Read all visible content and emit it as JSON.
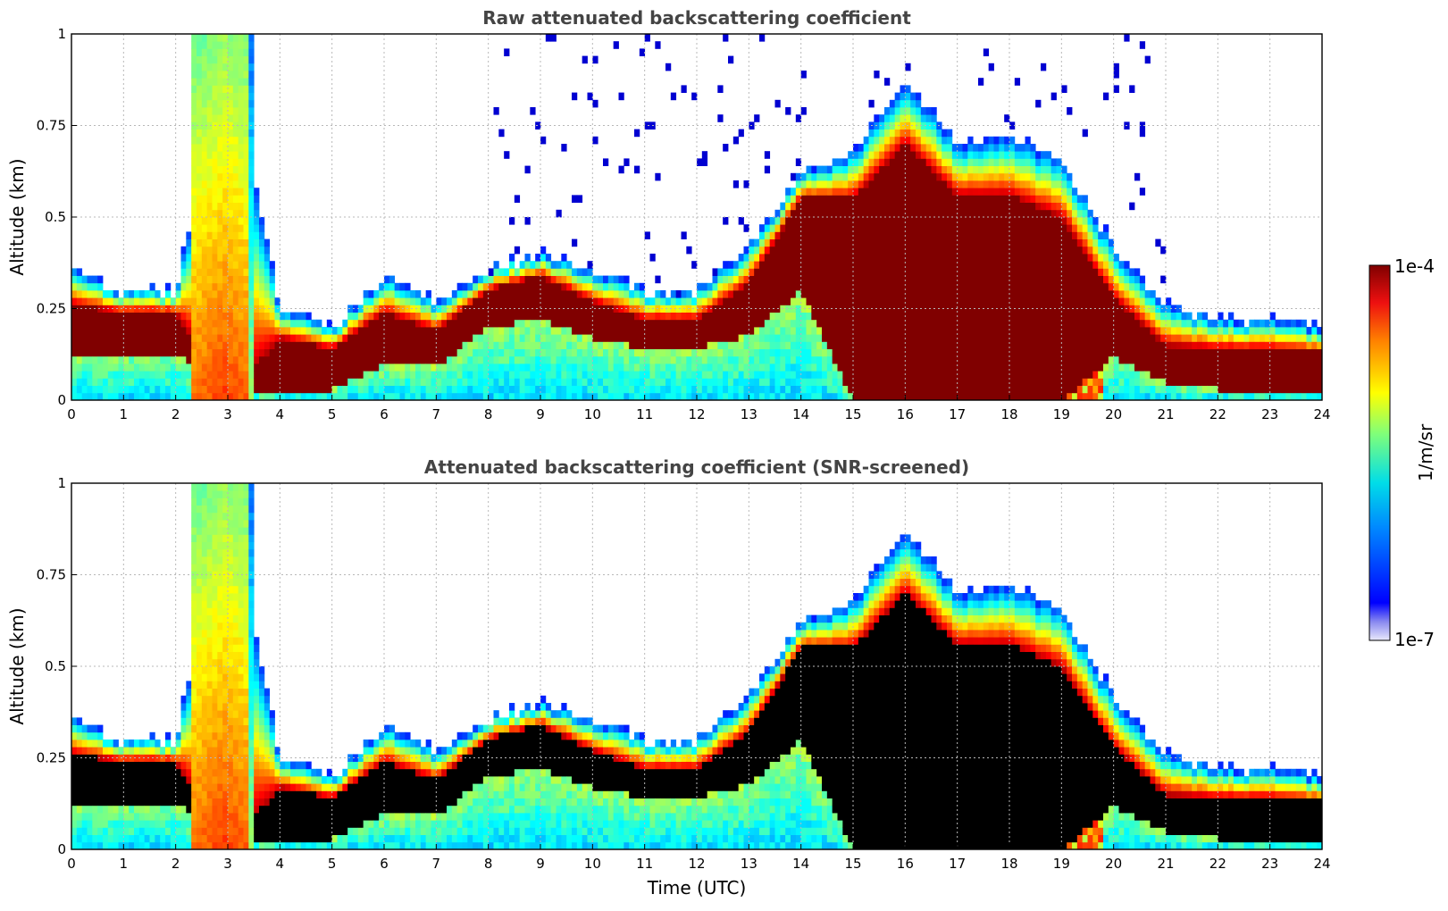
{
  "chart_data": [
    {
      "type": "heatmap",
      "title": "Raw attenuated backscattering coefficient",
      "xlabel": "",
      "ylabel": "Altitude (km)",
      "xlim": [
        0,
        24
      ],
      "ylim": [
        0,
        1
      ],
      "xticks": [
        "0",
        "1",
        "2",
        "3",
        "4",
        "5",
        "6",
        "7",
        "8",
        "9",
        "10",
        "11",
        "12",
        "13",
        "14",
        "15",
        "16",
        "17",
        "18",
        "19",
        "20",
        "21",
        "22",
        "23",
        "24"
      ],
      "yticks": [
        "0",
        "0.25",
        "0.5",
        "0.75",
        "1"
      ],
      "screened": false,
      "grid": true,
      "boundary_layer_top_km": {
        "time_utc": [
          0,
          1,
          2,
          3,
          4,
          5,
          6,
          7,
          8,
          9,
          10,
          11,
          12,
          13,
          14,
          15,
          16,
          17,
          18,
          19,
          20,
          21,
          22,
          23,
          24
        ],
        "altitude": [
          0.36,
          0.3,
          0.3,
          1.0,
          0.25,
          0.2,
          0.34,
          0.27,
          0.36,
          0.4,
          0.36,
          0.3,
          0.3,
          0.42,
          0.62,
          0.68,
          0.88,
          0.7,
          0.72,
          0.66,
          0.42,
          0.26,
          0.22,
          0.22,
          0.2
        ]
      },
      "high_backscatter_layer_km": {
        "time_utc": [
          0,
          1,
          2,
          3,
          4,
          5,
          6,
          7,
          8,
          9,
          10,
          11,
          12,
          13,
          14,
          15,
          16,
          17,
          18,
          19,
          20,
          21,
          22,
          23,
          24
        ],
        "bottom": [
          0.13,
          0.13,
          0.13,
          0.0,
          0.03,
          0.03,
          0.1,
          0.09,
          0.2,
          0.22,
          0.17,
          0.14,
          0.14,
          0.18,
          0.3,
          0.0,
          0.0,
          0.0,
          0.0,
          0.0,
          0.12,
          0.05,
          0.03,
          0.03,
          0.03
        ],
        "top": [
          0.26,
          0.24,
          0.24,
          0.0,
          0.17,
          0.14,
          0.24,
          0.19,
          0.3,
          0.34,
          0.27,
          0.22,
          0.22,
          0.32,
          0.55,
          0.55,
          0.7,
          0.56,
          0.56,
          0.5,
          0.28,
          0.15,
          0.14,
          0.14,
          0.13
        ]
      },
      "aerosol_plume": {
        "time_utc": [
          2.3,
          3.5
        ],
        "altitude_km": [
          0,
          1
        ]
      }
    },
    {
      "type": "heatmap",
      "title": "Attenuated backscattering coefficient (SNR-screened)",
      "xlabel": "Time (UTC)",
      "ylabel": "Altitude (km)",
      "xlim": [
        0,
        24
      ],
      "ylim": [
        0,
        1
      ],
      "xticks": [
        "0",
        "1",
        "2",
        "3",
        "4",
        "5",
        "6",
        "7",
        "8",
        "9",
        "10",
        "11",
        "12",
        "13",
        "14",
        "15",
        "16",
        "17",
        "18",
        "19",
        "20",
        "21",
        "22",
        "23",
        "24"
      ],
      "yticks": [
        "0",
        "0.25",
        "0.5",
        "0.75",
        "1"
      ],
      "screened": true,
      "grid": true,
      "boundary_layer_top_km": {
        "time_utc": [
          0,
          1,
          2,
          3,
          4,
          5,
          6,
          7,
          8,
          9,
          10,
          11,
          12,
          13,
          14,
          15,
          16,
          17,
          18,
          19,
          20,
          21,
          22,
          23,
          24
        ],
        "altitude": [
          0.36,
          0.3,
          0.3,
          1.0,
          0.25,
          0.2,
          0.34,
          0.27,
          0.36,
          0.4,
          0.36,
          0.3,
          0.3,
          0.42,
          0.62,
          0.68,
          0.88,
          0.7,
          0.72,
          0.66,
          0.42,
          0.26,
          0.22,
          0.22,
          0.2
        ]
      },
      "high_backscatter_layer_km": {
        "time_utc": [
          0,
          1,
          2,
          3,
          4,
          5,
          6,
          7,
          8,
          9,
          10,
          11,
          12,
          13,
          14,
          15,
          16,
          17,
          18,
          19,
          20,
          21,
          22,
          23,
          24
        ],
        "bottom": [
          0.13,
          0.13,
          0.13,
          0.0,
          0.03,
          0.03,
          0.1,
          0.09,
          0.2,
          0.22,
          0.17,
          0.14,
          0.14,
          0.18,
          0.3,
          0.0,
          0.0,
          0.0,
          0.0,
          0.0,
          0.12,
          0.05,
          0.03,
          0.03,
          0.03
        ],
        "top": [
          0.26,
          0.24,
          0.24,
          0.0,
          0.17,
          0.14,
          0.24,
          0.19,
          0.3,
          0.34,
          0.27,
          0.22,
          0.22,
          0.32,
          0.55,
          0.55,
          0.7,
          0.56,
          0.56,
          0.5,
          0.28,
          0.15,
          0.14,
          0.14,
          0.13
        ]
      },
      "aerosol_plume": {
        "time_utc": [
          2.3,
          3.5
        ],
        "altitude_km": [
          0,
          1
        ]
      }
    }
  ],
  "colorbar": {
    "label": "1/m/sr",
    "max_label": "1e-4",
    "min_label": "1e-7",
    "min": 1e-07,
    "max": 0.0001,
    "scale": "log",
    "colormap": "jet",
    "saturated_color": "#000000"
  }
}
